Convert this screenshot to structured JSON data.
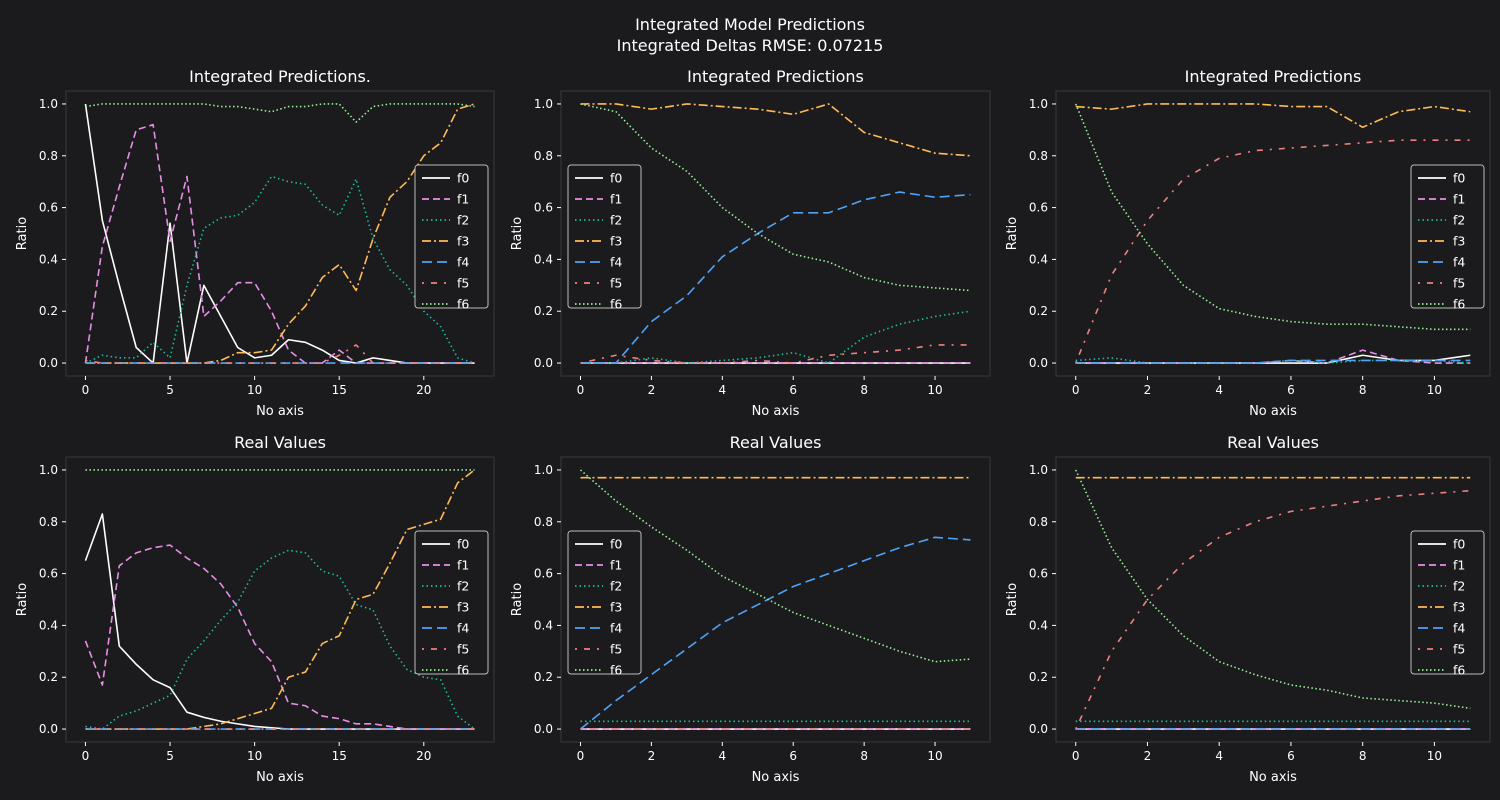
{
  "figure": {
    "title_line1": "Integrated Model Predictions",
    "title_line2": "Integrated Deltas RMSE: 0.07215",
    "background": "#1b1b1d",
    "axes_background": "#1b1b1d",
    "axes_edge": "#3a3a3c"
  },
  "series_styles": {
    "f0": {
      "color": "#ffffff",
      "dash": "none"
    },
    "f1": {
      "color": "#e78ee7",
      "dash": "7,4"
    },
    "f2": {
      "color": "#1abc9c",
      "dash": "1.5,3"
    },
    "f3": {
      "color": "#ffbb55",
      "dash": "9,3,2,3"
    },
    "f4": {
      "color": "#4fa3f7",
      "dash": "10,5"
    },
    "f5": {
      "color": "#f08080",
      "dash": "2,7,6,7"
    },
    "f6": {
      "color": "#98f098",
      "dash": "1.5,2.5"
    }
  },
  "chart_data": [
    {
      "type": "line",
      "title": "Integrated Predictions.",
      "xlabel": "No axis",
      "ylabel": "Ratio",
      "xlim": [
        -1.15,
        24.15
      ],
      "ylim": [
        -0.05,
        1.05
      ],
      "xticks": [
        0,
        5,
        10,
        15,
        20
      ],
      "yticks": [
        0.0,
        0.2,
        0.4,
        0.6,
        0.8,
        1.0
      ],
      "legend": "right",
      "x": [
        0,
        1,
        2,
        3,
        4,
        5,
        6,
        7,
        8,
        9,
        10,
        11,
        12,
        13,
        14,
        15,
        16,
        17,
        18,
        19,
        20,
        21,
        22,
        23
      ],
      "series": [
        {
          "name": "f0",
          "values": [
            1.0,
            0.55,
            0.3,
            0.06,
            0.0,
            0.54,
            0.0,
            0.3,
            0.18,
            0.06,
            0.02,
            0.03,
            0.09,
            0.08,
            0.05,
            0.01,
            0.0,
            0.02,
            0.01,
            0.0,
            0.0,
            0.0,
            0.0,
            0.0
          ]
        },
        {
          "name": "f1",
          "values": [
            0.0,
            0.45,
            0.68,
            0.9,
            0.92,
            0.47,
            0.72,
            0.18,
            0.24,
            0.31,
            0.31,
            0.2,
            0.05,
            0.0,
            0.0,
            0.05,
            0.0,
            0.0,
            0.0,
            0.0,
            0.0,
            0.0,
            0.0,
            0.0
          ]
        },
        {
          "name": "f2",
          "values": [
            0.0,
            0.03,
            0.02,
            0.02,
            0.08,
            0.02,
            0.3,
            0.52,
            0.56,
            0.57,
            0.62,
            0.72,
            0.7,
            0.69,
            0.61,
            0.57,
            0.71,
            0.48,
            0.36,
            0.3,
            0.2,
            0.14,
            0.02,
            0.0
          ]
        },
        {
          "name": "f3",
          "values": [
            0.0,
            0.0,
            0.0,
            0.0,
            0.0,
            0.0,
            0.0,
            0.0,
            0.01,
            0.04,
            0.04,
            0.05,
            0.15,
            0.22,
            0.33,
            0.38,
            0.28,
            0.48,
            0.64,
            0.7,
            0.8,
            0.85,
            0.98,
            1.0
          ]
        },
        {
          "name": "f4",
          "values": [
            0.0,
            0.0,
            0.0,
            0.0,
            0.0,
            0.0,
            0.0,
            0.0,
            0.0,
            0.0,
            0.0,
            0.0,
            0.0,
            0.0,
            0.0,
            0.0,
            0.0,
            0.0,
            0.0,
            0.0,
            0.0,
            0.0,
            0.0,
            0.0
          ]
        },
        {
          "name": "f5",
          "values": [
            0.01,
            0.0,
            0.0,
            0.0,
            0.0,
            0.0,
            0.0,
            0.0,
            0.0,
            0.0,
            0.0,
            0.0,
            0.0,
            0.0,
            0.0,
            0.03,
            0.07,
            0.0,
            0.0,
            0.0,
            0.0,
            0.0,
            0.0,
            0.0
          ]
        },
        {
          "name": "f6",
          "values": [
            0.99,
            1.0,
            1.0,
            1.0,
            1.0,
            1.0,
            1.0,
            1.0,
            0.99,
            0.99,
            0.98,
            0.97,
            0.99,
            0.99,
            1.0,
            1.0,
            0.93,
            0.99,
            1.0,
            1.0,
            1.0,
            1.0,
            1.0,
            0.99
          ]
        }
      ]
    },
    {
      "type": "line",
      "title": "Integrated Predictions",
      "xlabel": "No axis",
      "ylabel": "Ratio",
      "xlim": [
        -0.55,
        11.55
      ],
      "ylim": [
        -0.05,
        1.05
      ],
      "xticks": [
        0,
        2,
        4,
        6,
        8,
        10
      ],
      "yticks": [
        0.0,
        0.2,
        0.4,
        0.6,
        0.8,
        1.0
      ],
      "legend": "left",
      "x": [
        0,
        1,
        2,
        3,
        4,
        5,
        6,
        7,
        8,
        9,
        10,
        11
      ],
      "series": [
        {
          "name": "f0",
          "values": [
            0,
            0,
            0,
            0,
            0,
            0,
            0,
            0,
            0,
            0,
            0,
            0
          ]
        },
        {
          "name": "f1",
          "values": [
            0,
            0,
            0,
            0,
            0,
            0,
            0,
            0,
            0,
            0,
            0,
            0
          ]
        },
        {
          "name": "f2",
          "values": [
            0.0,
            0.0,
            0.02,
            0.0,
            0.01,
            0.02,
            0.04,
            0.0,
            0.1,
            0.15,
            0.18,
            0.2
          ]
        },
        {
          "name": "f3",
          "values": [
            1.0,
            1.0,
            0.98,
            1.0,
            0.99,
            0.98,
            0.96,
            1.0,
            0.89,
            0.85,
            0.81,
            0.8
          ]
        },
        {
          "name": "f4",
          "values": [
            0.0,
            0.0,
            0.16,
            0.26,
            0.41,
            0.5,
            0.58,
            0.58,
            0.63,
            0.66,
            0.64,
            0.65
          ]
        },
        {
          "name": "f5",
          "values": [
            0.0,
            0.03,
            0.01,
            0.0,
            0.0,
            0.01,
            0.0,
            0.03,
            0.04,
            0.05,
            0.07,
            0.07
          ]
        },
        {
          "name": "f6",
          "values": [
            1.0,
            0.97,
            0.83,
            0.74,
            0.6,
            0.5,
            0.42,
            0.39,
            0.33,
            0.3,
            0.29,
            0.28
          ]
        }
      ]
    },
    {
      "type": "line",
      "title": "Integrated Predictions",
      "xlabel": "No axis",
      "ylabel": "Ratio",
      "xlim": [
        -0.55,
        11.55
      ],
      "ylim": [
        -0.05,
        1.05
      ],
      "xticks": [
        0,
        2,
        4,
        6,
        8,
        10
      ],
      "yticks": [
        0.0,
        0.2,
        0.4,
        0.6,
        0.8,
        1.0
      ],
      "legend": "right",
      "x": [
        0,
        1,
        2,
        3,
        4,
        5,
        6,
        7,
        8,
        9,
        10,
        11
      ],
      "series": [
        {
          "name": "f0",
          "values": [
            0.0,
            0.0,
            0.0,
            0.0,
            0.0,
            0.0,
            0.0,
            0.0,
            0.03,
            0.01,
            0.01,
            0.03
          ]
        },
        {
          "name": "f1",
          "values": [
            0.0,
            0.0,
            0.0,
            0.0,
            0.0,
            0.0,
            0.01,
            0.0,
            0.05,
            0.01,
            0.0,
            0.0
          ]
        },
        {
          "name": "f2",
          "values": [
            0.01,
            0.02,
            0.0,
            0.0,
            0.0,
            0.0,
            0.01,
            0.0,
            0.01,
            0.01,
            0.01,
            0.0
          ]
        },
        {
          "name": "f3",
          "values": [
            0.99,
            0.98,
            1.0,
            1.0,
            1.0,
            1.0,
            0.99,
            0.99,
            0.91,
            0.97,
            0.99,
            0.97
          ]
        },
        {
          "name": "f4",
          "values": [
            0.0,
            0.0,
            0.0,
            0.0,
            0.0,
            0.0,
            0.01,
            0.01,
            0.01,
            0.01,
            0.01,
            0.01
          ]
        },
        {
          "name": "f5",
          "values": [
            0.0,
            0.34,
            0.55,
            0.71,
            0.79,
            0.82,
            0.83,
            0.84,
            0.85,
            0.86,
            0.86,
            0.86
          ]
        },
        {
          "name": "f6",
          "values": [
            1.0,
            0.66,
            0.46,
            0.3,
            0.21,
            0.18,
            0.16,
            0.15,
            0.15,
            0.14,
            0.13,
            0.13
          ]
        }
      ]
    },
    {
      "type": "line",
      "title": "Real Values",
      "xlabel": "No axis",
      "ylabel": "Ratio",
      "xlim": [
        -1.15,
        24.15
      ],
      "ylim": [
        -0.05,
        1.05
      ],
      "xticks": [
        0,
        5,
        10,
        15,
        20
      ],
      "yticks": [
        0.0,
        0.2,
        0.4,
        0.6,
        0.8,
        1.0
      ],
      "legend": "right",
      "x": [
        0,
        1,
        2,
        3,
        4,
        5,
        6,
        7,
        8,
        9,
        10,
        11,
        12,
        13,
        14,
        15,
        16,
        17,
        18,
        19,
        20,
        21,
        22,
        23
      ],
      "series": [
        {
          "name": "f0",
          "values": [
            0.65,
            0.83,
            0.32,
            0.25,
            0.19,
            0.16,
            0.065,
            0.045,
            0.03,
            0.02,
            0.01,
            0.005,
            0.0,
            0.0,
            0.0,
            0.0,
            0.0,
            0.0,
            0.0,
            0.0,
            0.0,
            0.0,
            0.0,
            0.0
          ]
        },
        {
          "name": "f1",
          "values": [
            0.34,
            0.17,
            0.63,
            0.68,
            0.7,
            0.71,
            0.66,
            0.62,
            0.56,
            0.47,
            0.33,
            0.26,
            0.1,
            0.09,
            0.05,
            0.04,
            0.02,
            0.02,
            0.01,
            0.0,
            0.0,
            0.0,
            0.0,
            0.0
          ]
        },
        {
          "name": "f2",
          "values": [
            0.01,
            0.0,
            0.05,
            0.07,
            0.1,
            0.13,
            0.27,
            0.34,
            0.42,
            0.49,
            0.61,
            0.66,
            0.69,
            0.68,
            0.61,
            0.59,
            0.48,
            0.46,
            0.32,
            0.23,
            0.2,
            0.19,
            0.05,
            0.0
          ]
        },
        {
          "name": "f3",
          "values": [
            0.0,
            0.0,
            0.0,
            0.0,
            0.0,
            0.0,
            0.0,
            0.01,
            0.02,
            0.04,
            0.06,
            0.08,
            0.2,
            0.22,
            0.33,
            0.36,
            0.5,
            0.52,
            0.64,
            0.77,
            0.79,
            0.81,
            0.95,
            1.0
          ]
        },
        {
          "name": "f4",
          "values": [
            0,
            0,
            0,
            0,
            0,
            0,
            0,
            0,
            0,
            0,
            0,
            0,
            0,
            0,
            0,
            0,
            0,
            0,
            0,
            0,
            0,
            0,
            0,
            0
          ]
        },
        {
          "name": "f5",
          "values": [
            0,
            0,
            0,
            0,
            0,
            0,
            0,
            0,
            0,
            0,
            0,
            0,
            0,
            0,
            0,
            0,
            0,
            0,
            0,
            0,
            0,
            0,
            0,
            0
          ]
        },
        {
          "name": "f6",
          "values": [
            1,
            1,
            1,
            1,
            1,
            1,
            1,
            1,
            1,
            1,
            1,
            1,
            1,
            1,
            1,
            1,
            1,
            1,
            1,
            1,
            1,
            1,
            1,
            1
          ]
        }
      ]
    },
    {
      "type": "line",
      "title": "Real Values",
      "xlabel": "No axis",
      "ylabel": "Ratio",
      "xlim": [
        -0.55,
        11.55
      ],
      "ylim": [
        -0.05,
        1.05
      ],
      "xticks": [
        0,
        2,
        4,
        6,
        8,
        10
      ],
      "yticks": [
        0.0,
        0.2,
        0.4,
        0.6,
        0.8,
        1.0
      ],
      "legend": "left",
      "x": [
        0,
        1,
        2,
        3,
        4,
        5,
        6,
        7,
        8,
        9,
        10,
        11
      ],
      "series": [
        {
          "name": "f0",
          "values": [
            0,
            0,
            0,
            0,
            0,
            0,
            0,
            0,
            0,
            0,
            0,
            0
          ]
        },
        {
          "name": "f1",
          "values": [
            0,
            0,
            0,
            0,
            0,
            0,
            0,
            0,
            0,
            0,
            0,
            0
          ]
        },
        {
          "name": "f2",
          "values": [
            0.03,
            0.03,
            0.03,
            0.03,
            0.03,
            0.03,
            0.03,
            0.03,
            0.03,
            0.03,
            0.03,
            0.03
          ]
        },
        {
          "name": "f3",
          "values": [
            0.97,
            0.97,
            0.97,
            0.97,
            0.97,
            0.97,
            0.97,
            0.97,
            0.97,
            0.97,
            0.97,
            0.97
          ]
        },
        {
          "name": "f4",
          "values": [
            0.0,
            0.11,
            0.21,
            0.31,
            0.41,
            0.48,
            0.55,
            0.6,
            0.65,
            0.7,
            0.74,
            0.73
          ]
        },
        {
          "name": "f5",
          "values": [
            0,
            0,
            0,
            0,
            0,
            0,
            0,
            0,
            0,
            0,
            0,
            0
          ]
        },
        {
          "name": "f6",
          "values": [
            1.0,
            0.88,
            0.78,
            0.69,
            0.59,
            0.52,
            0.45,
            0.4,
            0.35,
            0.3,
            0.26,
            0.27
          ]
        }
      ]
    },
    {
      "type": "line",
      "title": "Real Values",
      "xlabel": "No axis",
      "ylabel": "Ratio",
      "xlim": [
        -0.55,
        11.55
      ],
      "ylim": [
        -0.05,
        1.05
      ],
      "xticks": [
        0,
        2,
        4,
        6,
        8,
        10
      ],
      "yticks": [
        0.0,
        0.2,
        0.4,
        0.6,
        0.8,
        1.0
      ],
      "legend": "right",
      "x": [
        0,
        1,
        2,
        3,
        4,
        5,
        6,
        7,
        8,
        9,
        10,
        11
      ],
      "series": [
        {
          "name": "f0",
          "values": [
            0,
            0,
            0,
            0,
            0,
            0,
            0,
            0,
            0,
            0,
            0,
            0
          ]
        },
        {
          "name": "f1",
          "values": [
            0,
            0,
            0,
            0,
            0,
            0,
            0,
            0,
            0,
            0,
            0,
            0
          ]
        },
        {
          "name": "f2",
          "values": [
            0.03,
            0.03,
            0.03,
            0.03,
            0.03,
            0.03,
            0.03,
            0.03,
            0.03,
            0.03,
            0.03,
            0.03
          ]
        },
        {
          "name": "f3",
          "values": [
            0.97,
            0.97,
            0.97,
            0.97,
            0.97,
            0.97,
            0.97,
            0.97,
            0.97,
            0.97,
            0.97,
            0.97
          ]
        },
        {
          "name": "f4",
          "values": [
            0,
            0,
            0,
            0,
            0,
            0,
            0,
            0,
            0,
            0,
            0,
            0
          ]
        },
        {
          "name": "f5",
          "values": [
            0.0,
            0.3,
            0.5,
            0.64,
            0.74,
            0.8,
            0.84,
            0.86,
            0.88,
            0.9,
            0.91,
            0.92
          ]
        },
        {
          "name": "f6",
          "values": [
            1.0,
            0.7,
            0.5,
            0.36,
            0.26,
            0.21,
            0.17,
            0.15,
            0.12,
            0.11,
            0.1,
            0.08
          ]
        }
      ]
    }
  ]
}
